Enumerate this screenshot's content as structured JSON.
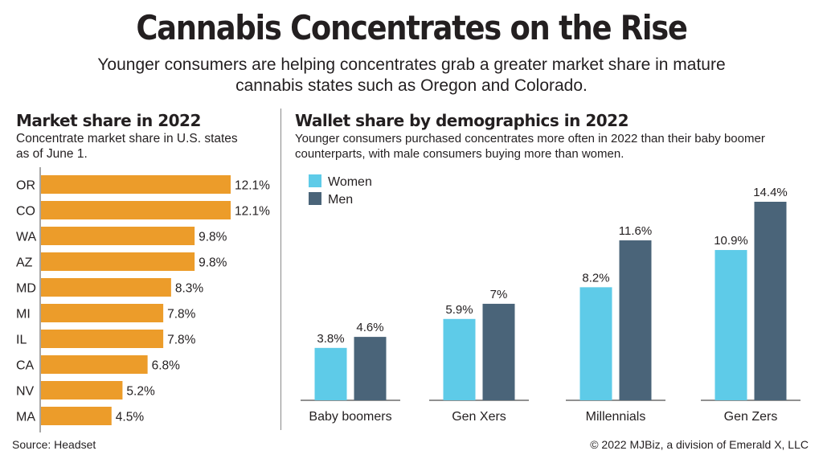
{
  "header": {
    "title": "Cannabis Concentrates on the Rise",
    "subtitle": "Younger consumers are helping concentrates grab a greater market share in mature cannabis states such as Oregon and Colorado."
  },
  "footer": {
    "source": "Source: Headset",
    "copyright": "© 2022 MJBiz, a division of Emerald X, LLC"
  },
  "chart_data": [
    {
      "type": "bar",
      "orientation": "horizontal",
      "title": "Market share in 2022",
      "subtitle": "Concentrate market share in U.S. states as of June 1.",
      "categories": [
        "OR",
        "CO",
        "WA",
        "AZ",
        "MD",
        "MI",
        "IL",
        "CA",
        "NV",
        "MA"
      ],
      "values": [
        12.1,
        12.1,
        9.8,
        9.8,
        8.3,
        7.8,
        7.8,
        6.8,
        5.2,
        4.5
      ],
      "labels": [
        "12.1%",
        "12.1%",
        "9.8%",
        "9.8%",
        "8.3%",
        "7.8%",
        "7.8%",
        "6.8%",
        "5.2%",
        "4.5%"
      ],
      "unit": "%",
      "color": "#ec9c2a",
      "xlim": [
        0,
        12.1
      ],
      "grid": false
    },
    {
      "type": "bar",
      "orientation": "vertical",
      "title": "Wallet share by demographics in 2022",
      "subtitle": "Younger consumers purchased concentrates more often in 2022 than their baby boomer counterparts, with male consumers buying more than women.",
      "categories": [
        "Baby boomers",
        "Gen Xers",
        "Millennials",
        "Gen Zers"
      ],
      "series": [
        {
          "name": "Women",
          "color": "#5ecbe8",
          "values": [
            3.8,
            5.9,
            8.2,
            10.9
          ],
          "labels": [
            "3.8%",
            "5.9%",
            "8.2%",
            "10.9%"
          ]
        },
        {
          "name": "Men",
          "color": "#4a6479",
          "values": [
            4.6,
            7.0,
            11.6,
            14.4
          ],
          "labels": [
            "4.6%",
            "7%",
            "11.6%",
            "14.4%"
          ]
        }
      ],
      "legend": "top-left",
      "ylim": [
        0,
        14.4
      ],
      "grid": false
    }
  ]
}
